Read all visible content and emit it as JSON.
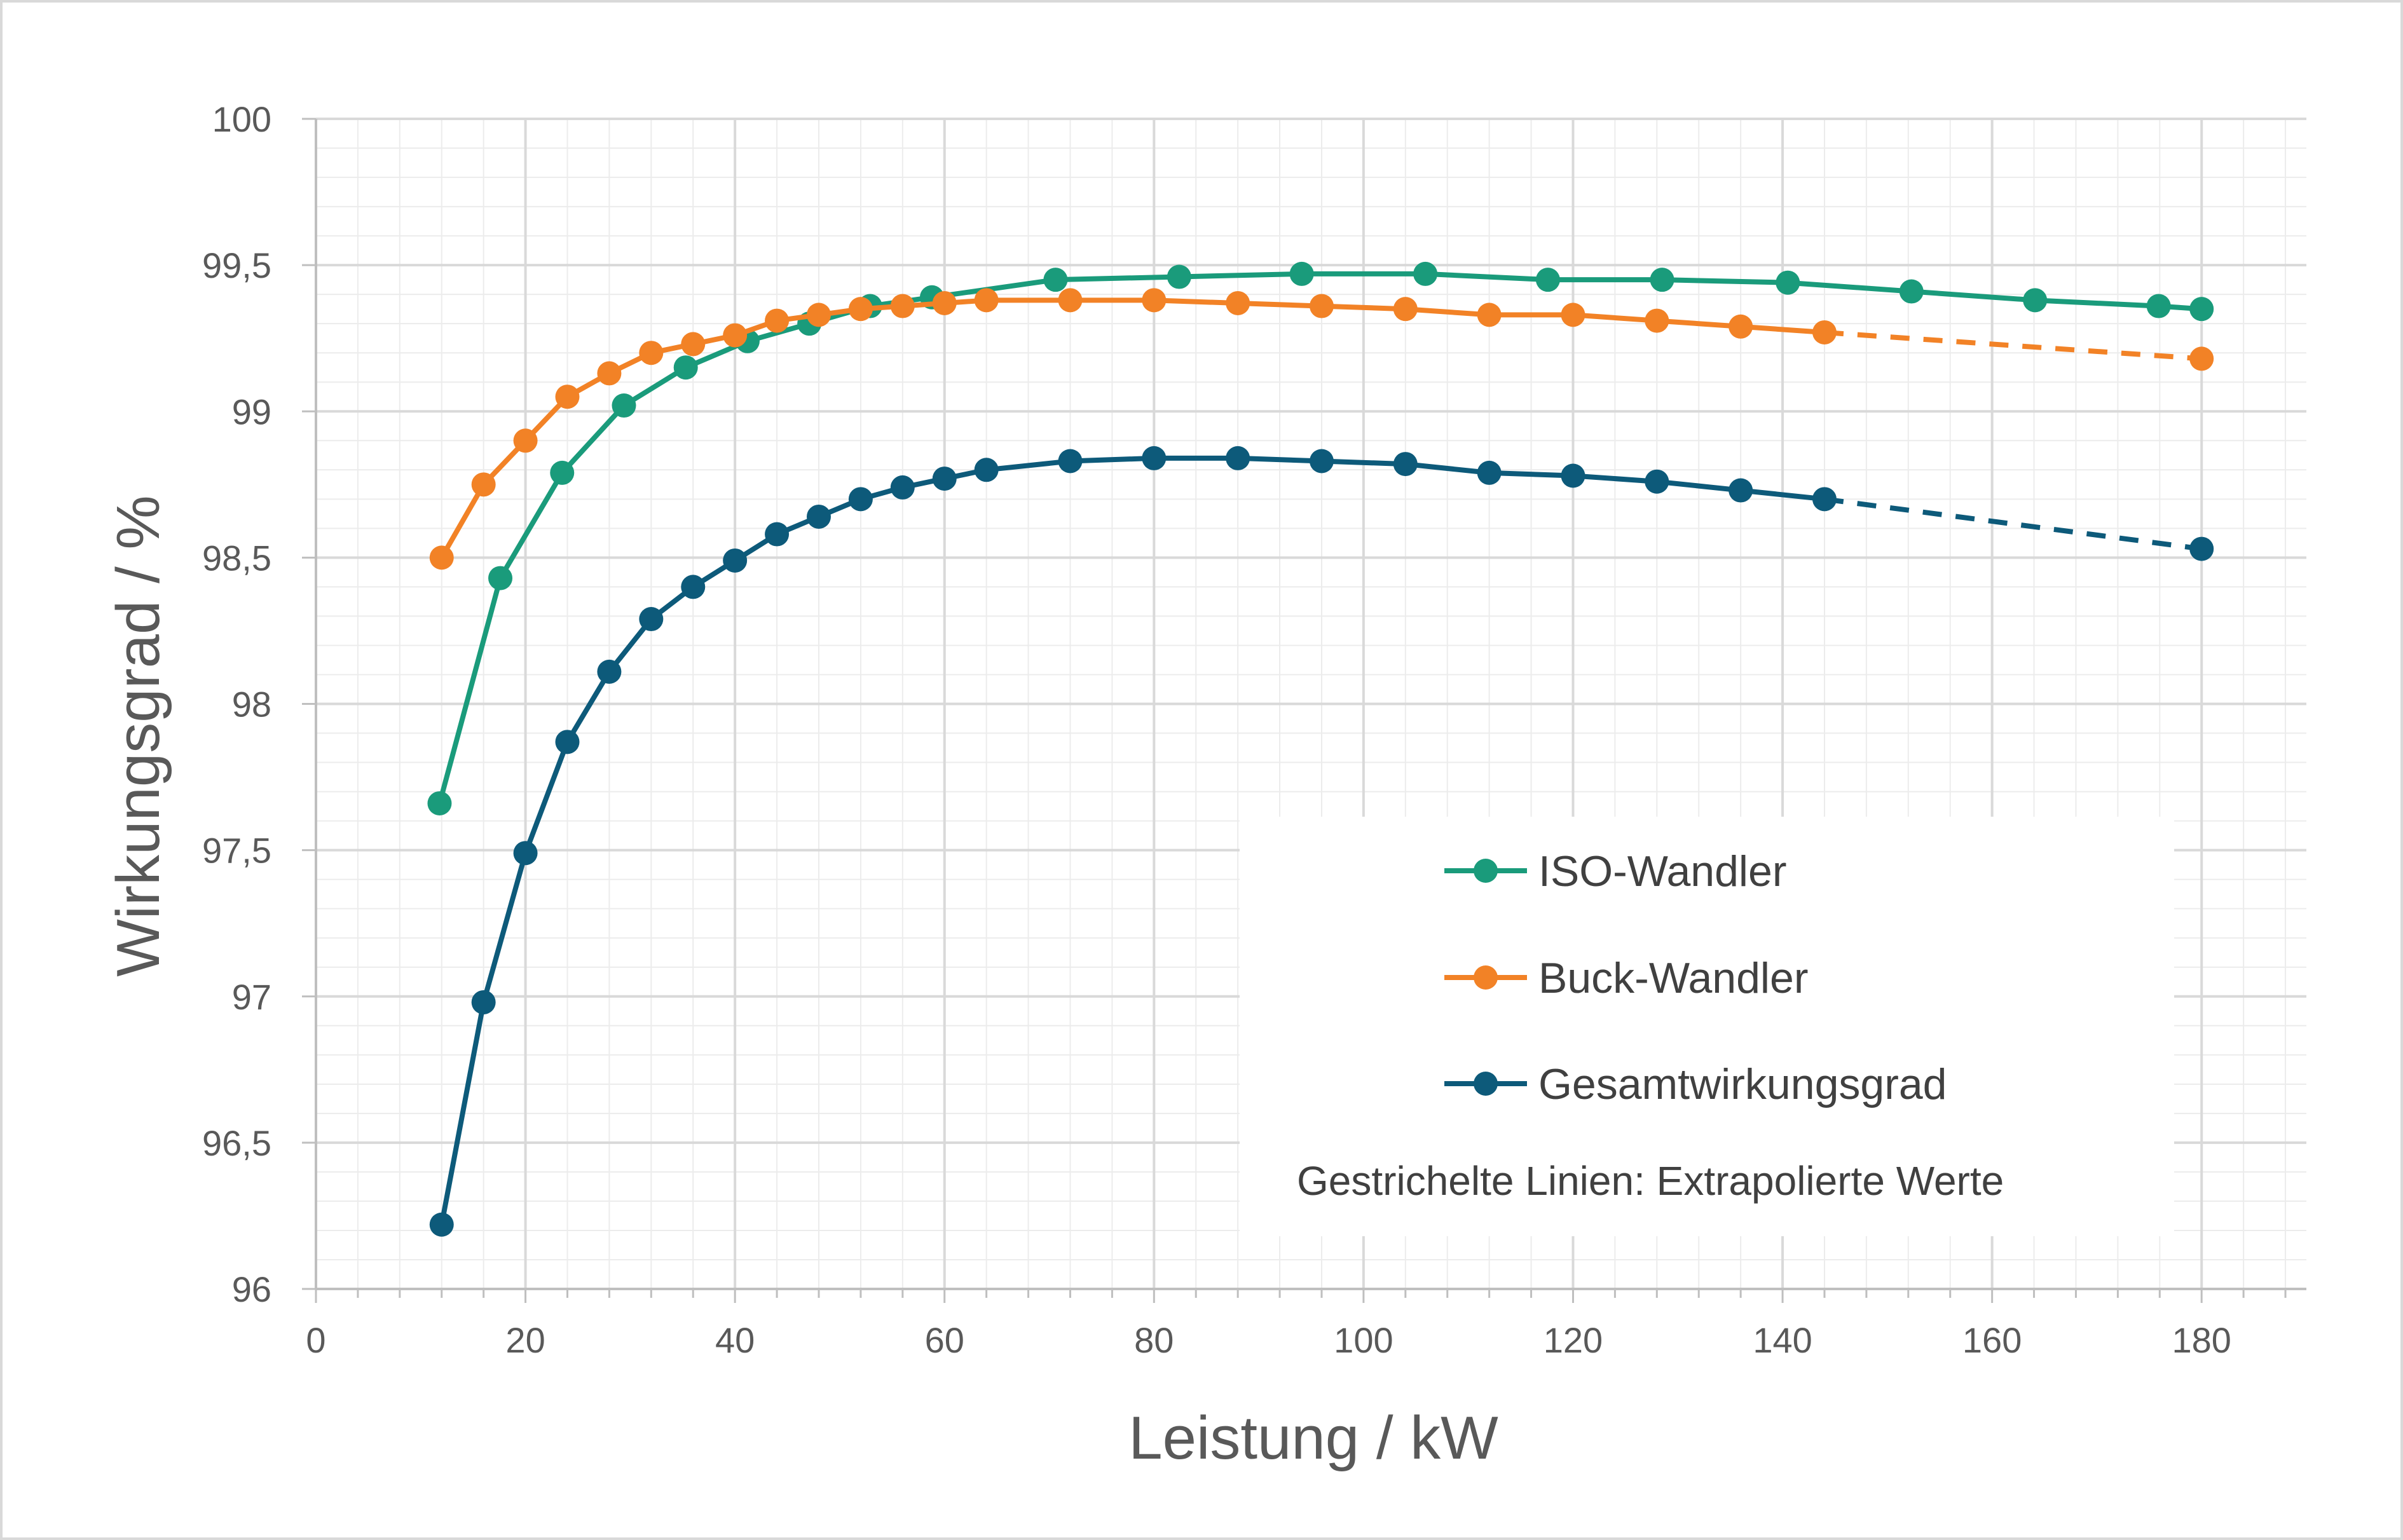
{
  "chart_data": {
    "type": "line",
    "title": "",
    "xlabel": "Leistung / kW",
    "ylabel": "Wirkungsgrad / %",
    "xlim": [
      0,
      190
    ],
    "ylim": [
      96,
      100
    ],
    "x_ticks": [
      0,
      20,
      40,
      60,
      80,
      100,
      120,
      140,
      160,
      180
    ],
    "x_tick_labels": [
      "0",
      "20",
      "40",
      "60",
      "80",
      "100",
      "120",
      "140",
      "160",
      "180"
    ],
    "y_ticks": [
      96,
      96.5,
      97,
      97.5,
      98,
      98.5,
      99,
      99.5,
      100
    ],
    "y_tick_labels": [
      "96",
      "96,5",
      "97",
      "97,5",
      "98",
      "98,5",
      "99",
      "99,5",
      "100"
    ],
    "grid": true,
    "legend_position": "bottom-right",
    "note": "Gestrichelte Linien: Extrapolierte Werte",
    "series": [
      {
        "name": "ISO-Wandler",
        "color": "#1a9b7b",
        "points": [
          [
            11.8,
            97.66
          ],
          [
            17.6,
            98.43
          ],
          [
            23.5,
            98.79
          ],
          [
            29.4,
            99.02
          ],
          [
            35.3,
            99.15
          ],
          [
            41.2,
            99.24
          ],
          [
            47.1,
            99.3
          ],
          [
            52.9,
            99.36
          ],
          [
            58.8,
            99.39
          ],
          [
            70.6,
            99.45
          ],
          [
            82.4,
            99.46
          ],
          [
            94.1,
            99.47
          ],
          [
            105.9,
            99.47
          ],
          [
            117.6,
            99.45
          ],
          [
            128.5,
            99.45
          ],
          [
            140.5,
            99.44
          ],
          [
            152.3,
            99.41
          ],
          [
            164.1,
            99.38
          ],
          [
            175.9,
            99.36
          ],
          [
            180,
            99.35
          ]
        ],
        "extrapolated_from": null
      },
      {
        "name": "Buck-Wandler",
        "color": "#f28226",
        "points": [
          [
            12,
            98.5
          ],
          [
            16,
            98.75
          ],
          [
            20,
            98.9
          ],
          [
            24,
            99.05
          ],
          [
            28,
            99.13
          ],
          [
            32,
            99.2
          ],
          [
            36,
            99.23
          ],
          [
            40,
            99.26
          ],
          [
            44,
            99.31
          ],
          [
            48,
            99.33
          ],
          [
            52,
            99.35
          ],
          [
            56,
            99.36
          ],
          [
            60,
            99.37
          ],
          [
            64,
            99.38
          ],
          [
            72,
            99.38
          ],
          [
            80,
            99.38
          ],
          [
            88,
            99.37
          ],
          [
            96,
            99.36
          ],
          [
            104,
            99.35
          ],
          [
            112,
            99.33
          ],
          [
            120,
            99.33
          ],
          [
            128,
            99.31
          ],
          [
            136,
            99.29
          ],
          [
            144,
            99.27
          ],
          [
            180,
            99.18
          ]
        ],
        "extrapolated_from": 144
      },
      {
        "name": "Gesamtwirkungsgrad",
        "color": "#0d5a7a",
        "points": [
          [
            12,
            96.22
          ],
          [
            16,
            96.98
          ],
          [
            20,
            97.49
          ],
          [
            24,
            97.87
          ],
          [
            28,
            98.11
          ],
          [
            32,
            98.29
          ],
          [
            36,
            98.4
          ],
          [
            40,
            98.49
          ],
          [
            44,
            98.58
          ],
          [
            48,
            98.64
          ],
          [
            52,
            98.7
          ],
          [
            56,
            98.74
          ],
          [
            60,
            98.77
          ],
          [
            64,
            98.8
          ],
          [
            72,
            98.83
          ],
          [
            80,
            98.84
          ],
          [
            88,
            98.84
          ],
          [
            96,
            98.83
          ],
          [
            104,
            98.82
          ],
          [
            112,
            98.79
          ],
          [
            120,
            98.78
          ],
          [
            128,
            98.76
          ],
          [
            136,
            98.73
          ],
          [
            144,
            98.7
          ],
          [
            180,
            98.53
          ]
        ],
        "extrapolated_from": 144
      }
    ]
  },
  "colors": {
    "grid_major": "#d9d9d9",
    "grid_minor": "#ececec",
    "frame": "#d9d9d9",
    "axis": "#bfbfbf"
  }
}
